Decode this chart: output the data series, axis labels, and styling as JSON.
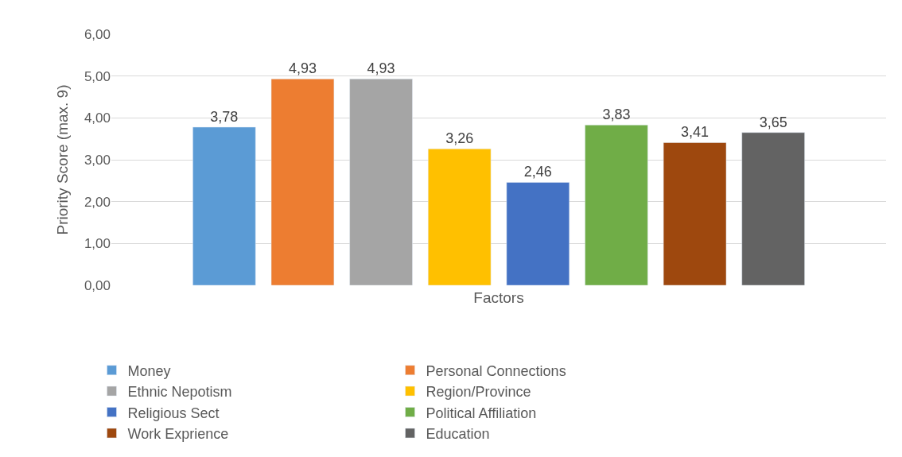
{
  "chart_data": {
    "type": "bar",
    "xlabel": "Factors",
    "ylabel": "Priority Score (max. 9)",
    "categories": [
      null
    ],
    "series": [
      {
        "name": "Money",
        "color": "#5b9bd5",
        "values": [
          3.78
        ],
        "value_labels": [
          "3,78"
        ]
      },
      {
        "name": "Personal Connections",
        "color": "#ed7d31",
        "values": [
          4.93
        ],
        "value_labels": [
          "4,93"
        ]
      },
      {
        "name": "Ethnic Nepotism",
        "color": "#a5a5a5",
        "values": [
          4.93
        ],
        "value_labels": [
          "4,93"
        ]
      },
      {
        "name": "Region/Province",
        "color": "#ffc000",
        "values": [
          3.26
        ],
        "value_labels": [
          "3,26"
        ]
      },
      {
        "name": "Religious Sect",
        "color": "#4472c4",
        "values": [
          2.46
        ],
        "value_labels": [
          "2,46"
        ]
      },
      {
        "name": "Political Affiliation",
        "color": "#70ad47",
        "values": [
          3.83
        ],
        "value_labels": [
          "3,83"
        ]
      },
      {
        "name": "Work Exprience",
        "color": "#9e480e",
        "values": [
          3.41
        ],
        "value_labels": [
          "3,41"
        ]
      },
      {
        "name": "Education",
        "color": "#636363",
        "values": [
          3.65
        ],
        "value_labels": [
          "3,65"
        ]
      }
    ],
    "ylim": [
      0,
      6
    ],
    "yticks": [
      {
        "value": 0,
        "label": "0,00"
      },
      {
        "value": 1,
        "label": "1,00"
      },
      {
        "value": 2,
        "label": "2,00"
      },
      {
        "value": 3,
        "label": "3,00"
      },
      {
        "value": 4,
        "label": "4,00"
      },
      {
        "value": 5,
        "label": "5,00"
      },
      {
        "value": 6,
        "label": "6,00"
      }
    ],
    "grid": "y",
    "legend": "bottom"
  }
}
